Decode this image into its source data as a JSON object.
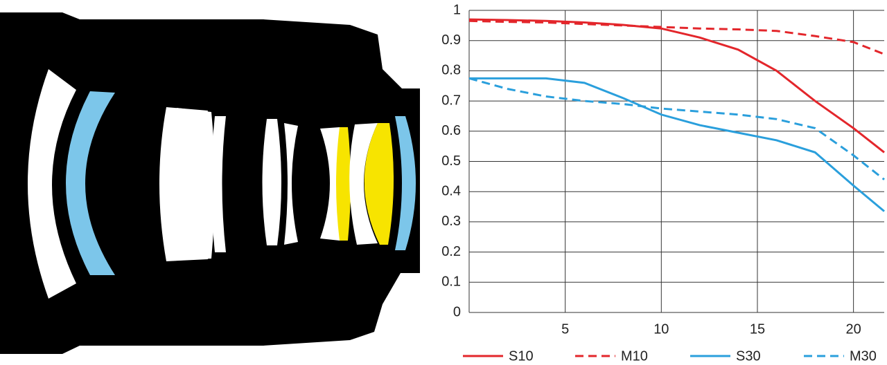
{
  "chart_data": {
    "type": "line",
    "x": [
      0,
      2,
      4,
      6,
      8,
      10,
      12,
      14,
      16,
      18,
      20,
      21.6
    ],
    "series": [
      {
        "name": "S10",
        "color": "#e3262b",
        "style": "solid",
        "values": [
          0.97,
          0.968,
          0.965,
          0.96,
          0.952,
          0.94,
          0.91,
          0.87,
          0.8,
          0.7,
          0.61,
          0.53
        ]
      },
      {
        "name": "M10",
        "color": "#e3262b",
        "style": "dashed",
        "values": [
          0.965,
          0.962,
          0.96,
          0.955,
          0.95,
          0.945,
          0.94,
          0.937,
          0.932,
          0.915,
          0.895,
          0.855
        ]
      },
      {
        "name": "S30",
        "color": "#2a9fdc",
        "style": "solid",
        "values": [
          0.775,
          0.775,
          0.775,
          0.76,
          0.71,
          0.655,
          0.62,
          0.595,
          0.57,
          0.53,
          0.42,
          0.335
        ]
      },
      {
        "name": "M30",
        "color": "#2a9fdc",
        "style": "dashed",
        "values": [
          0.775,
          0.74,
          0.715,
          0.7,
          0.69,
          0.675,
          0.665,
          0.655,
          0.64,
          0.61,
          0.52,
          0.44
        ]
      }
    ],
    "xlim": [
      0,
      21.6
    ],
    "ylim": [
      0,
      1
    ],
    "xticks": [
      5,
      10,
      15,
      20
    ],
    "yticks": [
      0,
      0.1,
      0.2,
      0.3,
      0.4,
      0.5,
      0.6,
      0.7,
      0.8,
      0.9,
      1
    ],
    "grid": true,
    "legend": "bottom"
  }
}
